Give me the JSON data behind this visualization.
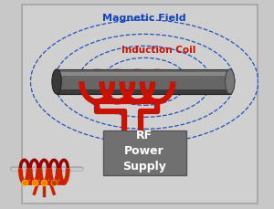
{
  "bg_color": "#d8d8d8",
  "outer_bg": "#c8c8c8",
  "panel_color": "#d0d0d0",
  "title_magnetic": "Magnetic Field",
  "title_coil": "Induction Coil",
  "title_rf": "RF\nPower\nSupply",
  "magnetic_color": "#1144bb",
  "coil_color": "#cc1100",
  "cylinder_dark": "#444444",
  "cylinder_mid": "#666666",
  "cylinder_light": "#888888",
  "rf_box_color": "#707070",
  "rf_text_color": "#ffffff",
  "figsize": [
    3.0,
    2.3
  ],
  "dpi": 100
}
